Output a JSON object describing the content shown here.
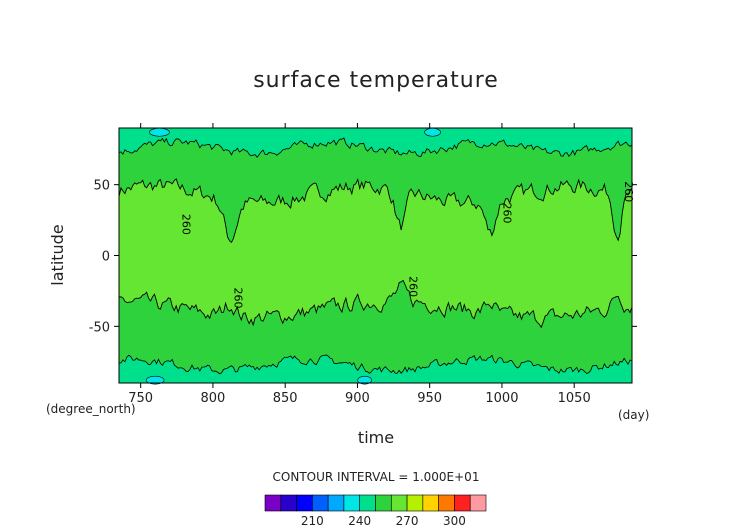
{
  "chart_data": {
    "type": "heatmap",
    "title": "surface temperature",
    "xlabel": "time",
    "ylabel": "latitude",
    "x_unit": "(day)",
    "y_unit": "(degree_north)",
    "xlim": [
      735,
      1090
    ],
    "ylim": [
      -90,
      90
    ],
    "x_ticks": [
      "750",
      "800",
      "850",
      "900",
      "950",
      "1000",
      "1050"
    ],
    "y_ticks": [
      "50",
      "0",
      "-50"
    ],
    "contour_interval": "CONTOUR INTERVAL = 1.000E+01",
    "contour_labels": [
      "260",
      "260",
      "260",
      "260",
      "260"
    ],
    "colorbar": {
      "levels": [
        190,
        200,
        210,
        220,
        230,
        240,
        250,
        260,
        270,
        280,
        290,
        300,
        310
      ],
      "tick_labels": [
        "210",
        "240",
        "270",
        "300"
      ],
      "colors": [
        "#7a00c8",
        "#2a00cc",
        "#0000ff",
        "#0060ff",
        "#00a8ff",
        "#00e6e6",
        "#00e08c",
        "#2dd23c",
        "#64e632",
        "#b4f000",
        "#ffd200",
        "#ff7800",
        "#ff2020",
        "#ff9aa0"
      ]
    },
    "bands_deg_north": {
      "tropics_260_270": "approx. -40 to 45, broken near days 805-825, 925-940, 985-1000",
      "midlat_250_260": "approx. 45 to 75 and -75 to -35",
      "polar_240_250": "approx. >75 and <-75"
    }
  }
}
